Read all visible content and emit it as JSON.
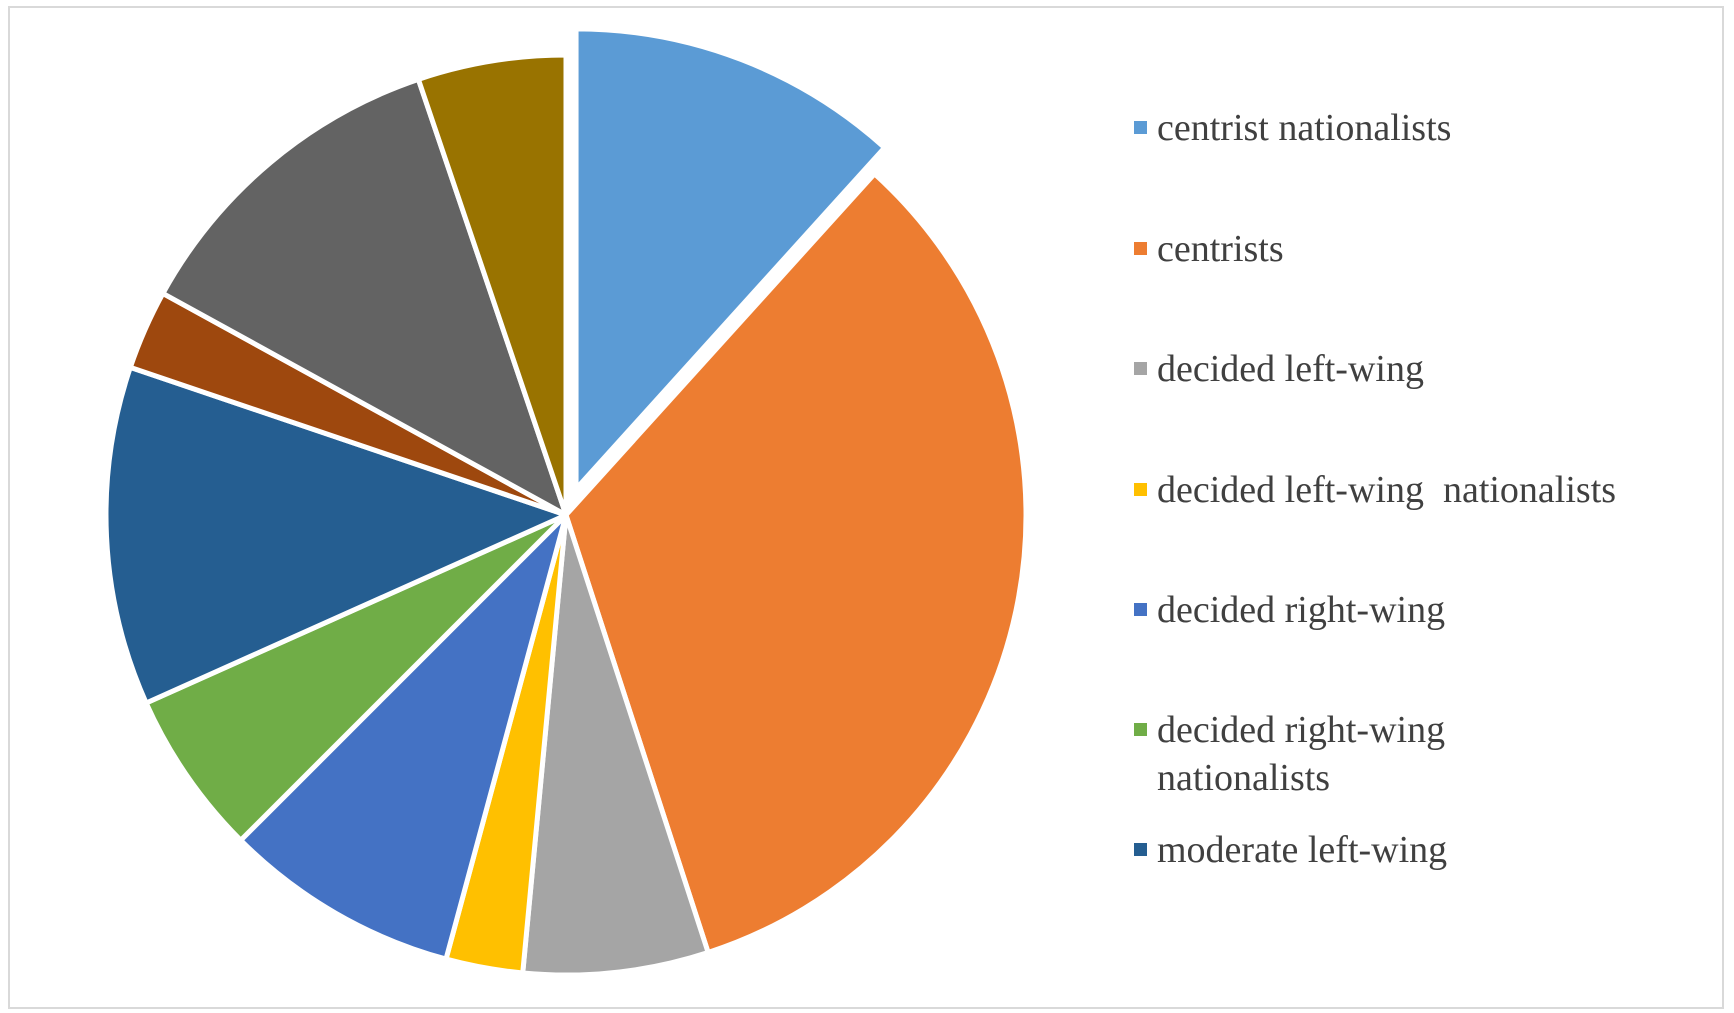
{
  "chart_data": {
    "type": "pie",
    "title": "",
    "exploded": [
      "centrist nationalists"
    ],
    "legend_position": "right",
    "slices": [
      {
        "label": "centrist nationalists",
        "value": 11.7,
        "color": "#5b9bd5"
      },
      {
        "label": "centrists",
        "value": 33.3,
        "color": "#ed7d31"
      },
      {
        "label": "decided left-wing",
        "value": 6.5,
        "color": "#a5a5a5"
      },
      {
        "label": "decided left-wing  nationalists",
        "value": 2.7,
        "color": "#ffc000"
      },
      {
        "label": "decided right-wing",
        "value": 8.3,
        "color": "#4472c4"
      },
      {
        "label": "decided right-wing\nnationalists",
        "value": 5.8,
        "color": "#70ad47"
      },
      {
        "label": "moderate left-wing",
        "value": 11.9,
        "color": "#255e91"
      },
      {
        "label": "",
        "value": 2.8,
        "color": "#9e480e"
      },
      {
        "label": "",
        "value": 11.8,
        "color": "#636363"
      },
      {
        "label": "",
        "value": 5.2,
        "color": "#997300"
      }
    ]
  },
  "legend": {
    "items": [
      {
        "label": "centrist nationalists",
        "color": "#5b9bd5"
      },
      {
        "label": "centrists",
        "color": "#ed7d31"
      },
      {
        "label": "decided left-wing",
        "color": "#a5a5a5"
      },
      {
        "label": "decided left-wing  nationalists",
        "color": "#ffc000"
      },
      {
        "label": "decided right-wing",
        "color": "#4472c4"
      },
      {
        "label": "decided right-wing\nnationalists",
        "color": "#70ad47"
      },
      {
        "label": "moderate left-wing",
        "color": "#255e91"
      }
    ]
  }
}
